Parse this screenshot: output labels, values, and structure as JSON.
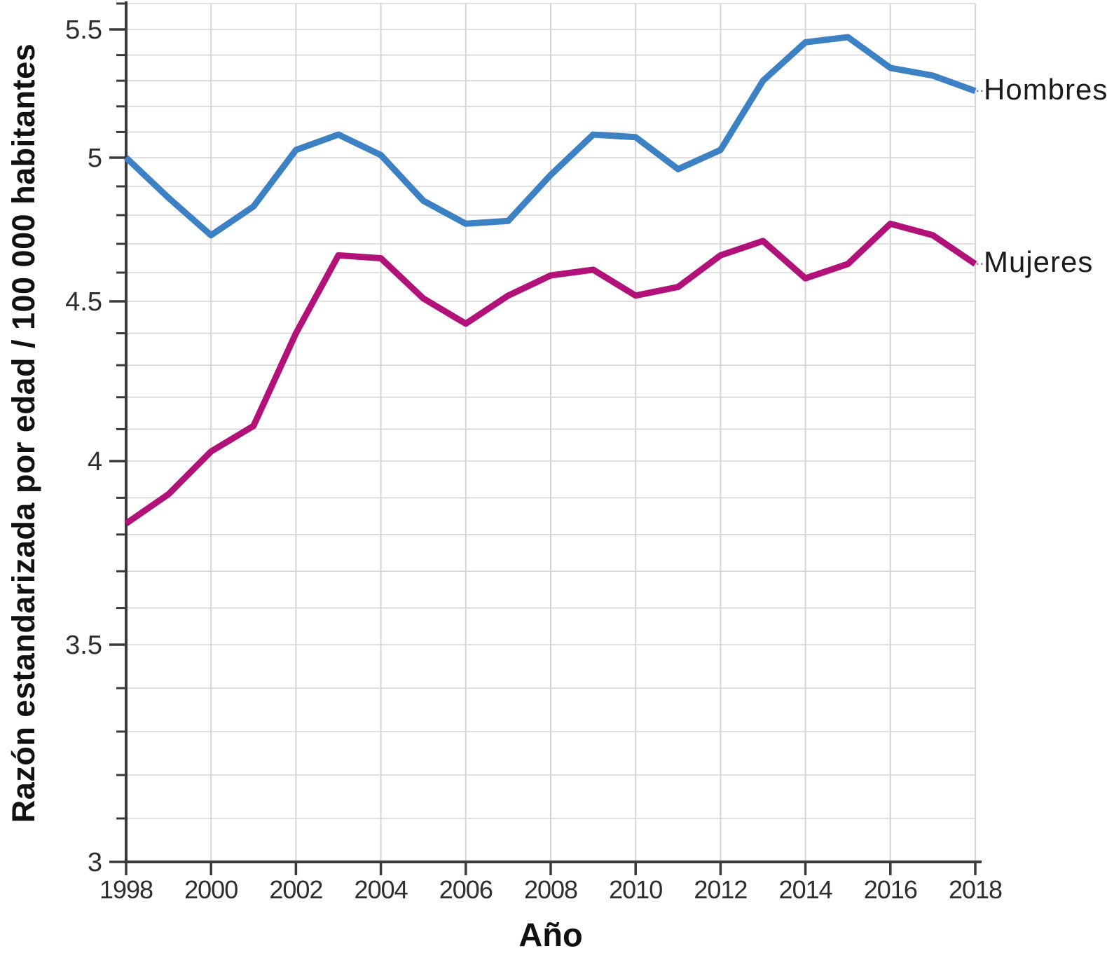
{
  "chart_data": {
    "type": "line",
    "title": "",
    "xlabel": "Año",
    "ylabel": "Razón estandarizada por edad / 100 000 habitantes",
    "x": [
      1998,
      1999,
      2000,
      2001,
      2002,
      2003,
      2004,
      2005,
      2006,
      2007,
      2008,
      2009,
      2010,
      2011,
      2012,
      2013,
      2014,
      2015,
      2016,
      2017,
      2018
    ],
    "series": [
      {
        "name": "Hombres",
        "color": "#3b81c4",
        "values": [
          5.0,
          4.86,
          4.73,
          4.83,
          5.03,
          5.09,
          5.01,
          4.85,
          4.77,
          4.78,
          4.94,
          5.09,
          5.08,
          4.96,
          5.03,
          5.3,
          5.45,
          5.47,
          5.35,
          5.32,
          5.26
        ]
      },
      {
        "name": "Mujeres",
        "color": "#b11179",
        "values": [
          3.83,
          3.91,
          4.03,
          4.11,
          4.4,
          4.66,
          4.65,
          4.51,
          4.43,
          4.52,
          4.59,
          4.61,
          4.52,
          4.55,
          4.66,
          4.71,
          4.58,
          4.63,
          4.77,
          4.73,
          4.63
        ]
      }
    ],
    "x_tick_labels": [
      "1998",
      "2000",
      "2002",
      "2004",
      "2006",
      "2008",
      "2010",
      "2012",
      "2014",
      "2016",
      "2018"
    ],
    "x_tick_values": [
      1998,
      2000,
      2002,
      2004,
      2006,
      2008,
      2010,
      2012,
      2014,
      2016,
      2018
    ],
    "y_tick_labels": [
      "5.5",
      "5",
      "4.5",
      "4",
      "3.5",
      "3"
    ],
    "y_tick_values": [
      5.5,
      5.0,
      4.5,
      4.0,
      3.5,
      3.0
    ],
    "y_minor_step": 0.1,
    "ylim": [
      3.0,
      5.6
    ],
    "xlim": [
      1998,
      2018
    ],
    "grid": true,
    "legend_position": "right-of-line-ends"
  },
  "colors": {
    "hombres_line": "#3b81c4",
    "mujeres_line": "#b11179",
    "gridline": "#d5d5d5",
    "axis": "#3a3a3a",
    "tick_text": "#2e2e2e",
    "label_text": "#1b1b1b",
    "background": "#ffffff"
  }
}
